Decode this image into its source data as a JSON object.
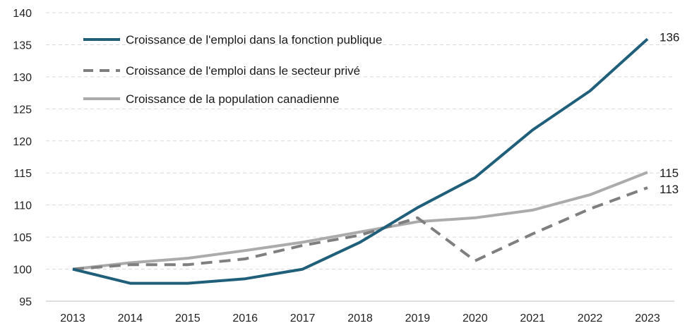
{
  "chart_data": {
    "type": "line",
    "title": "",
    "xlabel": "",
    "ylabel": "",
    "x": [
      "2013",
      "2014",
      "2015",
      "2016",
      "2017",
      "2018",
      "2019",
      "2020",
      "2021",
      "2022",
      "2023"
    ],
    "ylim": [
      95,
      140
    ],
    "yticks": [
      95,
      100,
      105,
      110,
      115,
      120,
      125,
      130,
      135,
      140
    ],
    "grid": true,
    "legend_position": "top-left",
    "series": [
      {
        "name": "Croissance de l'emploi dans la fonction publique",
        "values": [
          100,
          97.8,
          97.8,
          98.5,
          100,
          104.2,
          109.6,
          114.3,
          121.7,
          127.8,
          135.9
        ],
        "color": "#1f5f7a",
        "style": "solid",
        "end_label": "136"
      },
      {
        "name": "Croissance de l'emploi dans le secteur privé",
        "values": [
          100,
          100.7,
          100.7,
          101.6,
          103.7,
          105.3,
          108,
          101.3,
          105.5,
          109.4,
          112.7
        ],
        "color": "#7f7f7f",
        "style": "dashed",
        "end_label": "113"
      },
      {
        "name": "Croissance de la population canadienne",
        "values": [
          100,
          101,
          101.7,
          102.9,
          104.2,
          105.8,
          107.4,
          108,
          109.2,
          111.6,
          115.1
        ],
        "color": "#ababab",
        "style": "solid",
        "end_label": "115"
      }
    ]
  }
}
